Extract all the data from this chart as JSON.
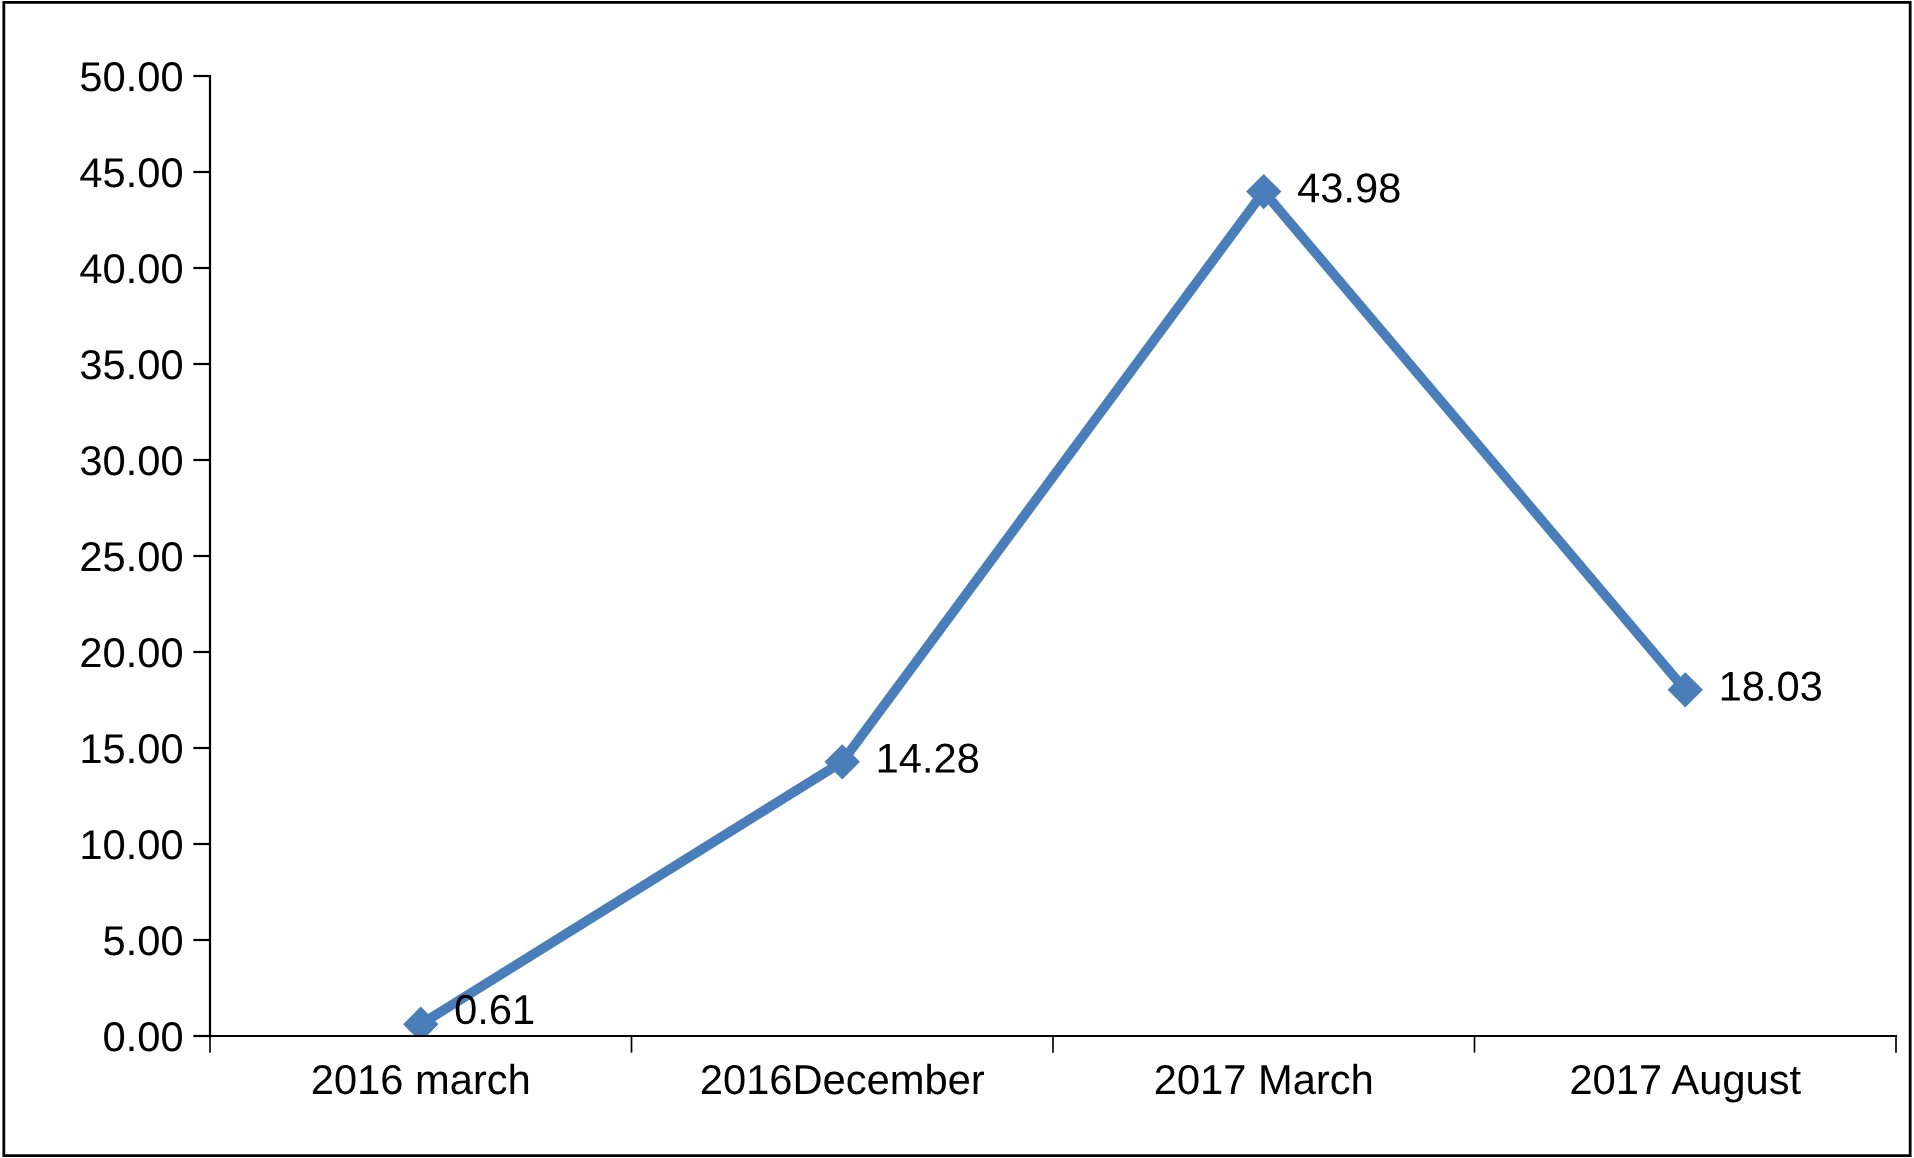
{
  "chart_data": {
    "type": "line",
    "categories": [
      "2016 march",
      "2016December",
      "2017 March",
      "2017 August"
    ],
    "series": [
      {
        "color": "#4a7ebb",
        "values": [
          0.61,
          14.28,
          43.98,
          18.03
        ]
      }
    ],
    "ylim": [
      0,
      50
    ],
    "yticks": [
      {
        "value": 0,
        "label": "0.00"
      },
      {
        "value": 5,
        "label": "5.00"
      },
      {
        "value": 10,
        "label": "10.00"
      },
      {
        "value": 15,
        "label": "15.00"
      },
      {
        "value": 20,
        "label": "20.00"
      },
      {
        "value": 25,
        "label": "25.00"
      },
      {
        "value": 30,
        "label": "30.00"
      },
      {
        "value": 35,
        "label": "35.00"
      },
      {
        "value": 40,
        "label": "40.00"
      },
      {
        "value": 45,
        "label": "45.00"
      },
      {
        "value": 50,
        "label": "50.00"
      }
    ],
    "marker": "diamond",
    "line_style": "solid",
    "data_labels": true,
    "grid": false,
    "legend": false
  }
}
